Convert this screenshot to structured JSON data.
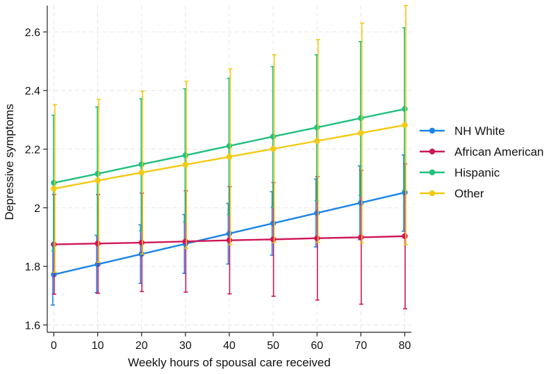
{
  "chart_data": {
    "type": "line",
    "title": "",
    "xlabel": "Weekly hours of spousal care received",
    "ylabel": "Depressive symptoms",
    "x": [
      0,
      10,
      20,
      30,
      40,
      50,
      60,
      70,
      80
    ],
    "x_ticks": [
      "0",
      "10",
      "20",
      "30",
      "40",
      "50",
      "60",
      "70",
      "80"
    ],
    "y_ticks": [
      "1.6",
      "1.8",
      "2",
      "2.2",
      "2.4",
      "2.6"
    ],
    "y_tick_values": [
      1.6,
      1.8,
      2.0,
      2.2,
      2.4,
      2.6
    ],
    "xlim": [
      -1.5,
      81.5
    ],
    "ylim": [
      1.575,
      2.69
    ],
    "grid": true,
    "legend_position": "right",
    "series": [
      {
        "name": "NH White",
        "color": "#1a85e8",
        "values": [
          1.772,
          1.807,
          1.842,
          1.877,
          1.912,
          1.947,
          1.982,
          2.017,
          2.052
        ],
        "ci_low": [
          1.668,
          1.71,
          1.742,
          1.776,
          1.808,
          1.838,
          1.866,
          1.891,
          1.92
        ],
        "ci_high": [
          1.876,
          1.906,
          1.942,
          1.977,
          2.015,
          2.055,
          2.098,
          2.143,
          2.18
        ]
      },
      {
        "name": "African American",
        "color": "#cf1658",
        "values": [
          1.875,
          1.878,
          1.881,
          1.885,
          1.889,
          1.892,
          1.896,
          1.899,
          1.903
        ],
        "ci_low": [
          1.705,
          1.708,
          1.714,
          1.712,
          1.706,
          1.698,
          1.685,
          1.671,
          1.655
        ],
        "ci_high": [
          2.045,
          2.045,
          2.05,
          2.058,
          2.072,
          2.086,
          2.106,
          2.127,
          2.15
        ]
      },
      {
        "name": "Hispanic",
        "color": "#1ec07e",
        "values": [
          2.085,
          2.116,
          2.148,
          2.179,
          2.211,
          2.243,
          2.274,
          2.306,
          2.337
        ],
        "ci_low": [
          1.853,
          1.906,
          1.922,
          1.952,
          1.977,
          2.002,
          2.024,
          2.042,
          2.06
        ],
        "ci_high": [
          2.316,
          2.344,
          2.372,
          2.406,
          2.442,
          2.482,
          2.522,
          2.567,
          2.614
        ]
      },
      {
        "name": "Other",
        "color": "#f2ca12",
        "values": [
          2.065,
          2.093,
          2.12,
          2.147,
          2.174,
          2.201,
          2.228,
          2.255,
          2.282
        ],
        "ci_low": [
          1.78,
          1.814,
          1.842,
          1.862,
          1.874,
          1.881,
          1.882,
          1.88,
          1.874
        ],
        "ci_high": [
          2.352,
          2.37,
          2.398,
          2.432,
          2.474,
          2.522,
          2.574,
          2.63,
          2.69
        ]
      }
    ]
  }
}
